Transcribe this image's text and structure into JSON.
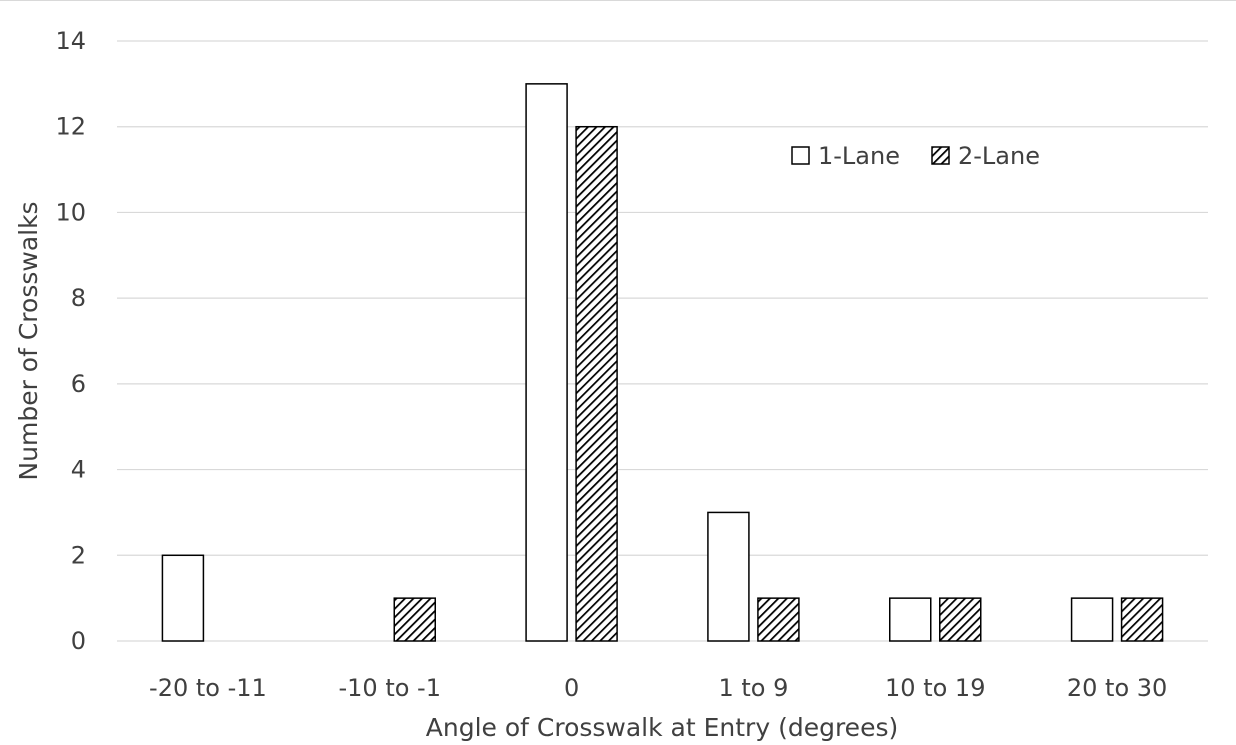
{
  "chart_data": {
    "type": "bar",
    "categories": [
      "-20 to -11",
      "-10 to -1",
      "0",
      "1 to 9",
      "10 to 19",
      "20 to 30"
    ],
    "series": [
      {
        "name": "1-Lane",
        "values": [
          2,
          0,
          13,
          3,
          1,
          1
        ],
        "fill": "#ffffff",
        "pattern": "none"
      },
      {
        "name": "2-Lane",
        "values": [
          0,
          1,
          12,
          1,
          1,
          1
        ],
        "fill": "#000000",
        "pattern": "diagonal-hatch"
      }
    ],
    "xlabel": "Angle of Crosswalk at Entry (degrees)",
    "ylabel": "Number of Crosswalks",
    "ylim": [
      0,
      14
    ],
    "yticks": [
      "0",
      "2",
      "4",
      "6",
      "8",
      "10",
      "12",
      "14"
    ],
    "grid": "horizontal",
    "legend_position": "top-right",
    "colors": {
      "gridline": "#d9d9d9",
      "text": "#404040",
      "bar_outline": "#000000"
    }
  }
}
